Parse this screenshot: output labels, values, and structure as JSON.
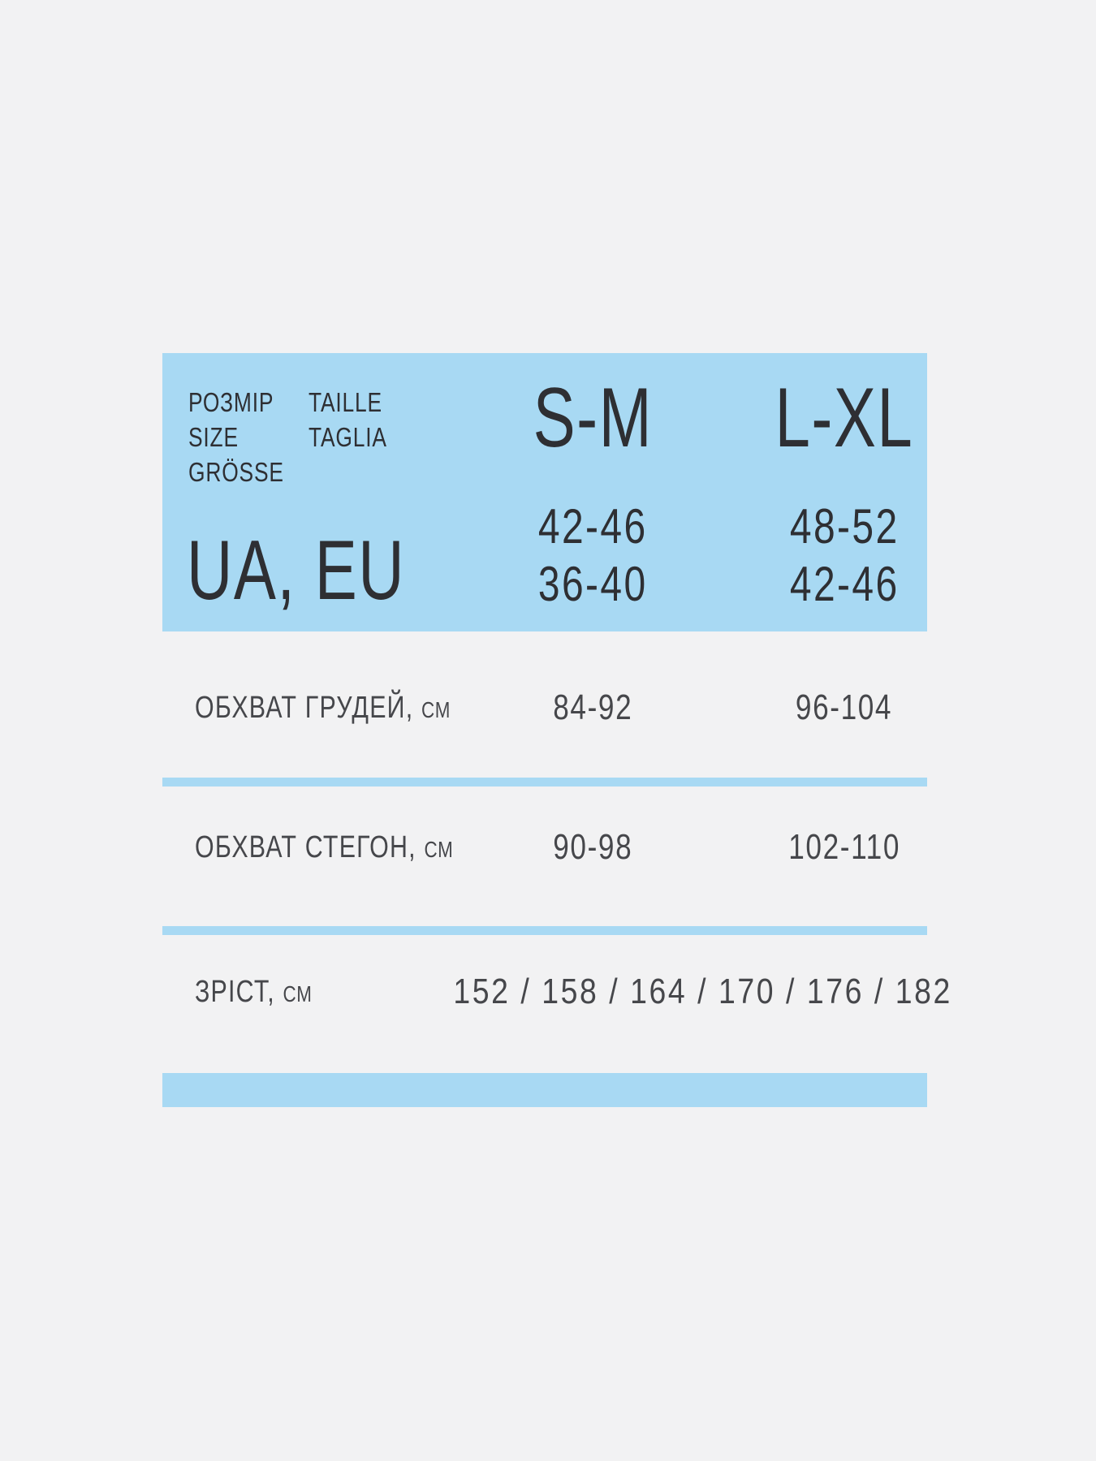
{
  "canvas": {
    "background": "#f2f2f3"
  },
  "colors": {
    "accent_blue": "#a8d9f3",
    "text_dark": "#2e2f33",
    "text_gray": "#46474b"
  },
  "size_card": {
    "legend_col1": [
      "РОЗМІР",
      "SIZE",
      "GRÖSSE"
    ],
    "legend_col2": [
      "TAILLE",
      "TAGLIA"
    ],
    "region_label": "UA, EU",
    "columns": [
      {
        "size_label": "S-M",
        "ua_eu_values": [
          "42-46",
          "36-40"
        ]
      },
      {
        "size_label": "L-XL",
        "ua_eu_values": [
          "48-52",
          "42-46"
        ]
      }
    ]
  },
  "measurement_rows": [
    {
      "label": "ОБХВАТ ГРУДЕЙ,",
      "unit": "СМ",
      "values": [
        "84-92",
        "96-104"
      ]
    },
    {
      "label": "ОБХВАТ СТЕГОН,",
      "unit": "СМ",
      "values": [
        "90-98",
        "102-110"
      ]
    },
    {
      "label": "ЗРІСТ,",
      "unit": "СМ",
      "values_combined": "152 / 158 / 164 / 170 / 176 / 182"
    }
  ],
  "chart_data": {
    "type": "table",
    "columns": [
      "S-M",
      "L-XL"
    ],
    "rows": [
      {
        "label": "РОЗМІР SIZE GRÖSSE TAILLE TAGLIA — UA, EU",
        "values": [
          "42-46 / 36-40",
          "48-52 / 42-46"
        ]
      },
      {
        "label": "ОБХВАТ ГРУДЕЙ, СМ",
        "values": [
          "84-92",
          "96-104"
        ]
      },
      {
        "label": "ОБХВАТ СТЕГОН, СМ",
        "values": [
          "90-98",
          "102-110"
        ]
      },
      {
        "label": "ЗРІСТ, СМ",
        "values": [
          "152 / 158 / 164 / 170 / 176 / 182"
        ]
      }
    ],
    "layout": {
      "header_card": true,
      "grid": "horizontal blue rules between rows",
      "legend_position": "top-left of header card"
    }
  }
}
